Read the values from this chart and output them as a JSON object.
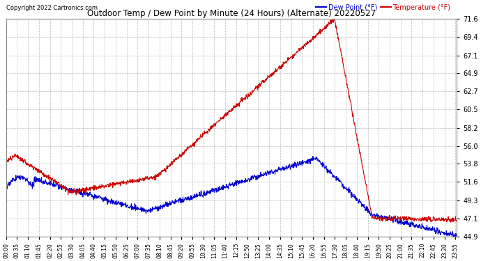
{
  "title": "Outdoor Temp / Dew Point by Minute (24 Hours) (Alternate) 20220527",
  "copyright": "Copyright 2022 Cartronics.com",
  "legend_dew": "Dew Point (°F)",
  "legend_temp": "Temperature (°F)",
  "bg_color": "#ffffff",
  "plot_bg_color": "#ffffff",
  "grid_color": "#aaaaaa",
  "title_color": "#000000",
  "copyright_color": "#000000",
  "dew_color": "#0000cc",
  "temp_color": "#cc0000",
  "legend_dew_color": "#0000cc",
  "legend_temp_color": "#cc0000",
  "ylim": [
    44.9,
    71.6
  ],
  "yticks": [
    44.9,
    47.1,
    49.3,
    51.6,
    53.8,
    56.0,
    58.2,
    60.5,
    62.7,
    64.9,
    67.1,
    69.4,
    71.6
  ],
  "n_minutes": 1440,
  "xtick_interval": 35
}
